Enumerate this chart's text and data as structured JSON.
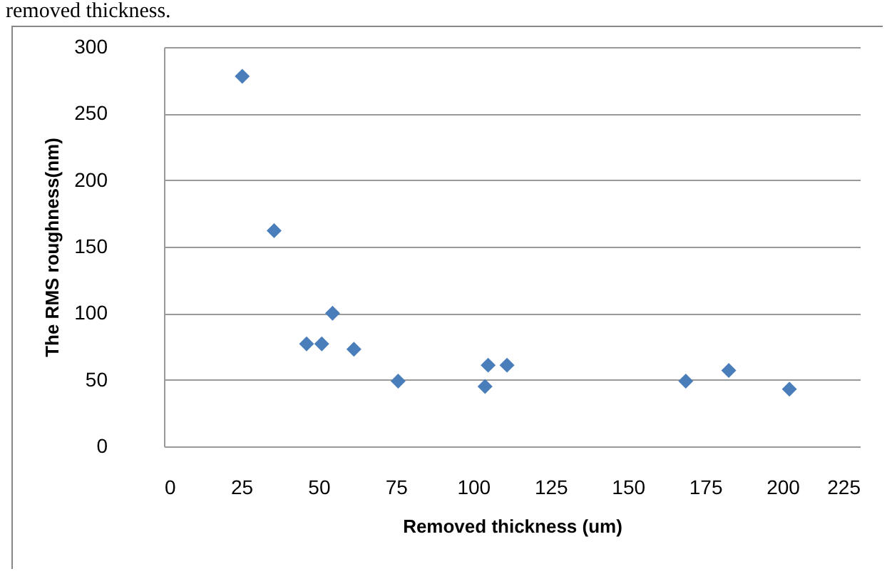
{
  "chart_data": {
    "type": "scatter",
    "xlabel": "Removed thickness (um)",
    "ylabel": "The RMS roughness(nm)",
    "annotations": [
      "removed thickness."
    ],
    "x": [
      25.3,
      35.6,
      46.1,
      51.0,
      54.5,
      61.4,
      75.7,
      103.8,
      104.8,
      110.9,
      168.7,
      182.6,
      202.2
    ],
    "series": [
      {
        "color": "#4a7ebb",
        "values": [
          278,
          162,
          77,
          77,
          100,
          73,
          49,
          45,
          61,
          61,
          49,
          57,
          43
        ]
      }
    ],
    "xlim": [
      0,
      225
    ],
    "xticks": [
      0,
      25,
      50,
      75,
      100,
      125,
      150,
      175,
      200,
      225
    ],
    "ylim": [
      0,
      300
    ],
    "yticks": [
      0,
      50,
      100,
      150,
      200,
      250,
      300
    ],
    "grid": "y",
    "marker": "diamond"
  }
}
